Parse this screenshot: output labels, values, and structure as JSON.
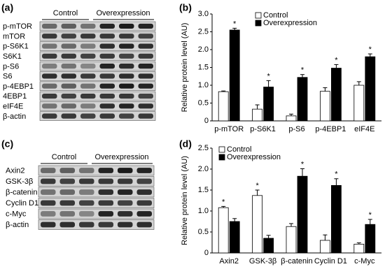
{
  "panel_labels": [
    "(a)",
    "(b)",
    "(c)",
    "(d)"
  ],
  "blots": [
    {
      "header": [
        "Control",
        "Overexpression"
      ],
      "rows": [
        "p-mTOR",
        "mTOR",
        "p-S6K1",
        "S6K1",
        "p-S6",
        "S6",
        "p-4EBP1",
        "4EBP1",
        "eIF4E",
        "β-actin"
      ]
    },
    {
      "header": [
        "Control",
        "Overexpression"
      ],
      "rows": [
        "Axin2",
        "GSK-3β",
        "β-catenin",
        "Cyclin D1",
        "c-Myc",
        "β-actin"
      ]
    }
  ],
  "chart_data": [
    {
      "type": "bar",
      "ylabel": "Relative protein level (AU)",
      "categories": [
        "p-mTOR",
        "p-S6K1",
        "p-S6",
        "p-4EBP1",
        "eIF4E"
      ],
      "series": [
        {
          "name": "Control",
          "color": "#ffffff",
          "values": [
            0.82,
            0.33,
            0.14,
            0.83,
            1.0
          ],
          "errors": [
            0.02,
            0.12,
            0.05,
            0.1,
            0.1
          ]
        },
        {
          "name": "Overexpression",
          "color": "#000000",
          "values": [
            2.55,
            0.95,
            1.22,
            1.48,
            1.8
          ],
          "errors": [
            0.05,
            0.18,
            0.08,
            0.1,
            0.08
          ]
        }
      ],
      "annotations": [
        "*",
        "*",
        "*",
        "*",
        "*"
      ],
      "ylim": [
        0,
        3
      ],
      "yticks": [
        0,
        0.5,
        {
          "value": 1,
          "label": "1.0"
        },
        1.5,
        {
          "value": 2,
          "label": "2.0"
        },
        2.5,
        {
          "value": 3,
          "label": "3.0"
        }
      ],
      "legend": "top"
    },
    {
      "type": "bar",
      "ylabel": "Relative protein level (AU)",
      "categories": [
        "Axin2",
        "GSK-3β",
        "β-catenin",
        "Cyclin D1",
        "c-Myc"
      ],
      "series": [
        {
          "name": "Control",
          "color": "#ffffff",
          "values": [
            1.08,
            1.37,
            0.63,
            0.3,
            0.21
          ],
          "errors": [
            0.03,
            0.13,
            0.07,
            0.13,
            0.03
          ]
        },
        {
          "name": "Overexpression",
          "color": "#000000",
          "values": [
            0.75,
            0.35,
            1.83,
            1.61,
            0.68
          ],
          "errors": [
            0.07,
            0.07,
            0.18,
            0.16,
            0.12
          ]
        }
      ],
      "annotations": [
        "*",
        "*",
        "*",
        "*",
        "*"
      ],
      "ylim": [
        0,
        2.5
      ],
      "yticks": [
        0,
        0.5,
        {
          "value": 1,
          "label": "1.0"
        },
        1.5,
        {
          "value": 2,
          "label": "2.0"
        },
        2.5
      ],
      "legend": "top-left"
    }
  ]
}
